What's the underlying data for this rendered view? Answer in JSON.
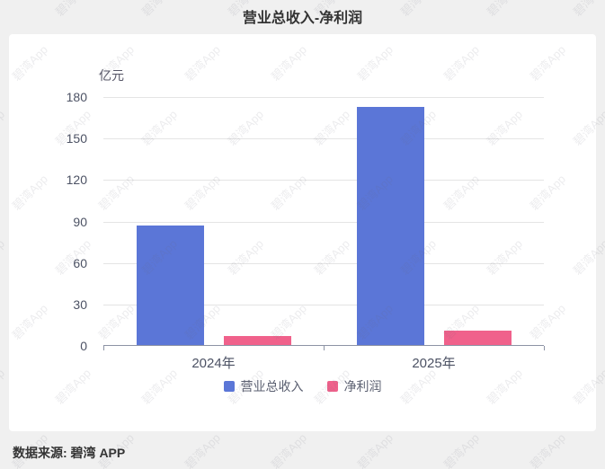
{
  "page": {
    "title": "营业总收入-净利润",
    "footer": "数据来源: 碧湾 APP",
    "watermark": "碧湾App"
  },
  "chart_data": {
    "type": "bar",
    "title": "营业总收入-净利润",
    "unit_label": "亿元",
    "categories": [
      "2024年",
      "2025年"
    ],
    "series": [
      {
        "name": "营业总收入",
        "color": "#5b76d7",
        "values": [
          87,
          173
        ]
      },
      {
        "name": "净利润",
        "color": "#f0618b",
        "values": [
          7,
          11
        ]
      }
    ],
    "ylim": [
      0,
      180
    ],
    "yticks": [
      0,
      30,
      60,
      90,
      120,
      150,
      180
    ],
    "grid": true,
    "legend_position": "bottom"
  }
}
